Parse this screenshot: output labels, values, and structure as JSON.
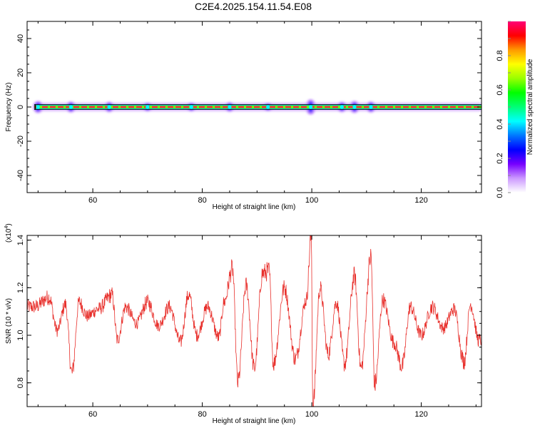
{
  "title": "C2E4.2025.154.11.54.E08",
  "chart_data": [
    {
      "type": "heatmap",
      "xlabel": "Height of straight line (km)",
      "ylabel": "Frequency (Hz)",
      "xlim": [
        48,
        131
      ],
      "ylim": [
        -50,
        50
      ],
      "xticks": [
        60,
        80,
        100,
        120
      ],
      "yticks": [
        -40,
        -20,
        0,
        20,
        40
      ],
      "band": {
        "frequency_center": 0,
        "frequency_halfwidth": 1.5,
        "x_start": 49.3,
        "x_end": 131
      },
      "hotspots": [
        {
          "x": 50,
          "halfwidth": 3.5
        },
        {
          "x": 56,
          "halfwidth": 3.2
        },
        {
          "x": 63,
          "halfwidth": 3.0
        },
        {
          "x": 70,
          "halfwidth": 2.6
        },
        {
          "x": 78,
          "halfwidth": 2.6
        },
        {
          "x": 85,
          "halfwidth": 2.8
        },
        {
          "x": 92,
          "halfwidth": 2.4
        },
        {
          "x": 99.8,
          "halfwidth": 4.5
        },
        {
          "x": 105.5,
          "halfwidth": 3.0
        },
        {
          "x": 107.8,
          "halfwidth": 3.5
        },
        {
          "x": 110.8,
          "halfwidth": 3.2
        }
      ],
      "colorbar": {
        "label": "Normalized spectral amplitude",
        "ticks": [
          "0.0",
          "0.2",
          "0.4",
          "0.6",
          "0.8"
        ],
        "range": [
          0,
          1
        ],
        "colormap": [
          "#ffffff",
          "#cc99ff",
          "#7700ff",
          "#0000ff",
          "#0077ff",
          "#00ffff",
          "#00ff77",
          "#00ff00",
          "#99ff00",
          "#ffff00",
          "#ff9900",
          "#ff0000",
          "#ff0077"
        ]
      }
    },
    {
      "type": "line",
      "xlabel": "Height of straight line (km)",
      "ylabel": "SNR (10 * v/v)",
      "multiplier": "(x10",
      "multiplier_exp": "4",
      "multiplier_close": ")",
      "xlim": [
        48,
        131
      ],
      "ylim": [
        0.7,
        1.42
      ],
      "xticks": [
        60,
        80,
        100,
        120
      ],
      "yticks": [
        "0.8",
        "1.0",
        "1.2",
        "1.4"
      ],
      "line_color": "#e8302c",
      "series": [
        {
          "baseline": 1.05,
          "peaks": [
            [
              49.5,
              1.12
            ],
            [
              52,
              1.16
            ],
            [
              53.5,
              1.02
            ],
            [
              55,
              1.13
            ],
            [
              56.2,
              0.84
            ],
            [
              57.5,
              1.14
            ],
            [
              59,
              1.08
            ],
            [
              61,
              1.11
            ],
            [
              63.5,
              1.17
            ],
            [
              64.5,
              0.98
            ],
            [
              66,
              1.12
            ],
            [
              68,
              1.05
            ],
            [
              70,
              1.14
            ],
            [
              72,
              1.04
            ],
            [
              74,
              1.12
            ],
            [
              76,
              0.97
            ],
            [
              77.5,
              1.17
            ],
            [
              79,
              1.0
            ],
            [
              81,
              1.12
            ],
            [
              83,
              0.99
            ],
            [
              84,
              1.14
            ],
            [
              85.5,
              1.28
            ],
            [
              86.5,
              0.8
            ],
            [
              88,
              1.21
            ],
            [
              89.5,
              0.86
            ],
            [
              91,
              1.26
            ],
            [
              92.2,
              1.27
            ],
            [
              93,
              0.88
            ],
            [
              95,
              1.2
            ],
            [
              97,
              0.9
            ],
            [
              99,
              1.15
            ],
            [
              99.9,
              1.42
            ],
            [
              100.2,
              0.7
            ],
            [
              101.5,
              1.2
            ],
            [
              103,
              0.92
            ],
            [
              104.5,
              1.14
            ],
            [
              106,
              0.88
            ],
            [
              107.8,
              1.25
            ],
            [
              109,
              0.86
            ],
            [
              110.8,
              1.33
            ],
            [
              111.5,
              0.79
            ],
            [
              113,
              1.15
            ],
            [
              115,
              0.97
            ],
            [
              116.5,
              0.87
            ],
            [
              118,
              1.12
            ],
            [
              120,
              1.0
            ],
            [
              122,
              1.12
            ],
            [
              124,
              1.03
            ],
            [
              126,
              1.11
            ],
            [
              127.8,
              0.89
            ],
            [
              129,
              1.13
            ],
            [
              130.5,
              0.98
            ]
          ]
        }
      ]
    }
  ]
}
